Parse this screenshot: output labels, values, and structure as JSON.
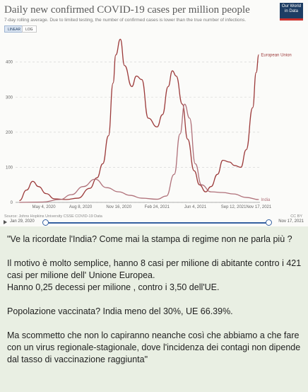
{
  "chart": {
    "title": "Daily new confirmed COVID-19 cases per million people",
    "subtitle": "7-day rolling average. Due to limited testing, the number of confirmed cases is lower than the true number of infections.",
    "logo_line1": "Our World",
    "logo_line2": "in Data",
    "toggle_linear": "LINEAR",
    "toggle_log": "LOG",
    "source": "Source: Johns Hopkins University CSSE COVID-19 Data",
    "license": "CC BY",
    "timeline_start": "Jan 29, 2020",
    "timeline_end": "Nov 17, 2021"
  },
  "chart_data": {
    "type": "line",
    "title": "Daily new confirmed COVID-19 cases per million people",
    "ylim": [
      0,
      480
    ],
    "yticks": [
      0,
      100,
      200,
      300,
      400
    ],
    "xticks": [
      "May 4, 2020",
      "Aug 8, 2020",
      "Nov 16, 2020",
      "Feb 24, 2021",
      "Jun 4, 2021",
      "Sep 12, 2021",
      "Nov 17, 2021"
    ],
    "grid": true,
    "colors": {
      "European Union": "#9c3a3a",
      "India": "#b0717a"
    },
    "series": [
      {
        "name": "European Union",
        "x": [
          "2020-03-01",
          "2020-03-20",
          "2020-04-05",
          "2020-04-20",
          "2020-05-10",
          "2020-06-01",
          "2020-07-01",
          "2020-08-01",
          "2020-09-01",
          "2020-09-20",
          "2020-10-05",
          "2020-10-20",
          "2020-11-01",
          "2020-11-08",
          "2020-11-20",
          "2020-12-01",
          "2020-12-20",
          "2021-01-01",
          "2021-01-15",
          "2021-02-01",
          "2021-02-24",
          "2021-03-10",
          "2021-03-25",
          "2021-04-05",
          "2021-04-15",
          "2021-05-01",
          "2021-05-15",
          "2021-06-01",
          "2021-06-15",
          "2021-07-01",
          "2021-07-15",
          "2021-08-01",
          "2021-08-15",
          "2021-09-01",
          "2021-09-15",
          "2021-10-01",
          "2021-10-15",
          "2021-11-01",
          "2021-11-10",
          "2021-11-17"
        ],
        "values": [
          5,
          35,
          60,
          45,
          25,
          10,
          8,
          12,
          40,
          70,
          110,
          190,
          340,
          420,
          465,
          390,
          330,
          360,
          350,
          240,
          215,
          250,
          330,
          375,
          360,
          280,
          180,
          90,
          50,
          30,
          45,
          80,
          120,
          115,
          105,
          100,
          150,
          270,
          370,
          421
        ]
      },
      {
        "name": "India",
        "x": [
          "2020-03-01",
          "2020-05-01",
          "2020-06-15",
          "2020-07-15",
          "2020-08-15",
          "2020-09-15",
          "2020-10-15",
          "2020-11-16",
          "2020-12-15",
          "2021-01-15",
          "2021-02-24",
          "2021-03-20",
          "2021-04-10",
          "2021-04-25",
          "2021-05-07",
          "2021-05-20",
          "2021-06-04",
          "2021-06-20",
          "2021-07-15",
          "2021-08-15",
          "2021-09-12",
          "2021-10-15",
          "2021-11-17"
        ],
        "values": [
          0,
          1,
          8,
          22,
          45,
          66,
          42,
          30,
          20,
          12,
          9,
          18,
          80,
          195,
          280,
          240,
          110,
          50,
          30,
          28,
          24,
          14,
          8
        ]
      }
    ]
  },
  "post": {
    "paragraphs": [
      "\"Ve la ricordate l'India? Come mai la stampa di regime non ne parla più ?",
      "",
      "Il motivo è molto semplice, hanno 8 casi per milione di abitante contro i 421 casi per milione dell' Unione Europea.",
      "Hanno 0,25 decessi per milione , contro i 3,50 dell'UE.",
      "",
      "Popolazione vaccinata? India meno del 30%, UE 66.39%.",
      "",
      "Ma scommetto che non lo capiranno neanche così che abbiamo a che fare con un virus regionale-stagionale, dove l'incidenza dei contagi non dipende dal tasso di vaccinazione raggiunta\""
    ]
  }
}
